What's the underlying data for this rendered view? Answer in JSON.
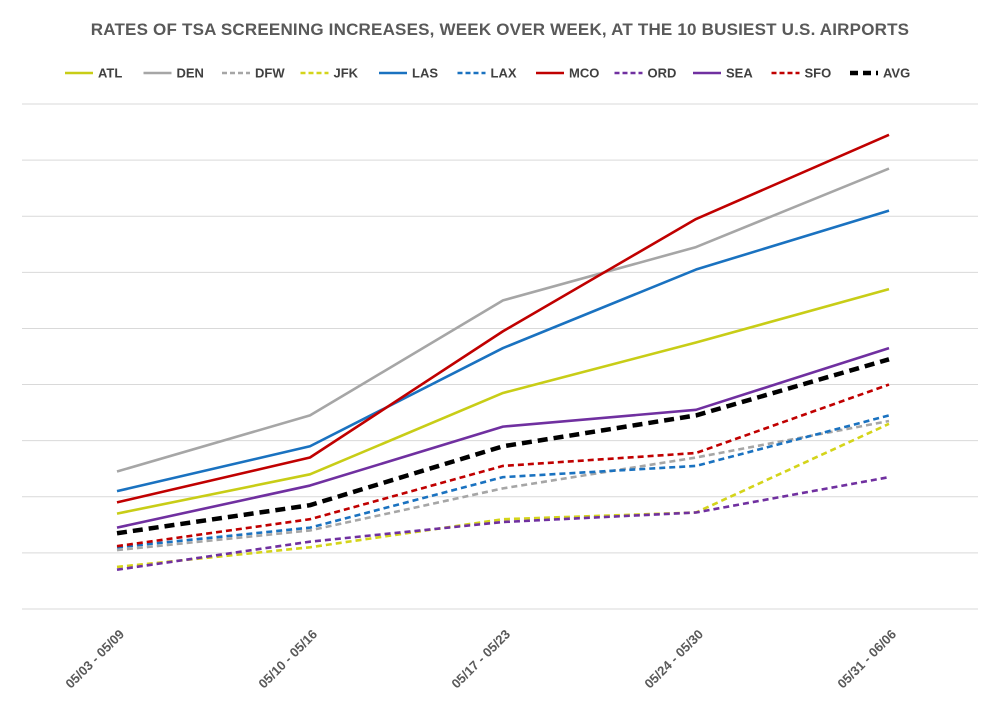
{
  "chart_data": {
    "type": "line",
    "title": "RATES OF TSA SCREENING INCREASES, WEEK OVER WEEK, AT THE 10 BUSIEST U.S. AIRPORTS",
    "xlabel": "",
    "ylabel": "",
    "categories": [
      "05/03 - 05/09",
      "05/10 - 05/16",
      "05/17 - 05/23",
      "05/24 - 05/30",
      "05/31 - 06/06"
    ],
    "ylim": [
      0,
      9
    ],
    "grid": true,
    "legend_position": "top",
    "series": [
      {
        "name": "ATL",
        "color": "#c8cd17",
        "dashed": false,
        "bold": false,
        "values": [
          1.7,
          2.4,
          3.85,
          4.75,
          5.7
        ]
      },
      {
        "name": "DEN",
        "color": "#a6a6a6",
        "dashed": false,
        "bold": false,
        "values": [
          2.45,
          3.45,
          5.5,
          6.45,
          7.85
        ]
      },
      {
        "name": "DFW",
        "color": "#a6a6a6",
        "dashed": true,
        "bold": false,
        "values": [
          1.05,
          1.4,
          2.15,
          2.7,
          3.35
        ]
      },
      {
        "name": "JFK",
        "color": "#d4d41a",
        "dashed": true,
        "bold": false,
        "values": [
          0.75,
          1.1,
          1.6,
          1.72,
          3.3
        ]
      },
      {
        "name": "LAS",
        "color": "#1a72c0",
        "dashed": false,
        "bold": false,
        "values": [
          2.1,
          2.9,
          4.65,
          6.05,
          7.1
        ]
      },
      {
        "name": "LAX",
        "color": "#1a72c0",
        "dashed": true,
        "bold": false,
        "values": [
          1.1,
          1.45,
          2.35,
          2.55,
          3.45
        ]
      },
      {
        "name": "MCO",
        "color": "#c00000",
        "dashed": false,
        "bold": false,
        "values": [
          1.9,
          2.7,
          4.95,
          6.95,
          8.45
        ]
      },
      {
        "name": "ORD",
        "color": "#7030a0",
        "dashed": true,
        "bold": false,
        "values": [
          0.7,
          1.2,
          1.55,
          1.72,
          2.35
        ]
      },
      {
        "name": "SEA",
        "color": "#7030a0",
        "dashed": false,
        "bold": false,
        "values": [
          1.45,
          2.2,
          3.25,
          3.55,
          4.65
        ]
      },
      {
        "name": "SFO",
        "color": "#c00000",
        "dashed": true,
        "bold": false,
        "values": [
          1.12,
          1.6,
          2.55,
          2.78,
          4.0
        ]
      },
      {
        "name": "AVG",
        "color": "#000000",
        "dashed": true,
        "bold": true,
        "values": [
          1.35,
          1.85,
          2.9,
          3.45,
          4.45
        ]
      }
    ]
  }
}
